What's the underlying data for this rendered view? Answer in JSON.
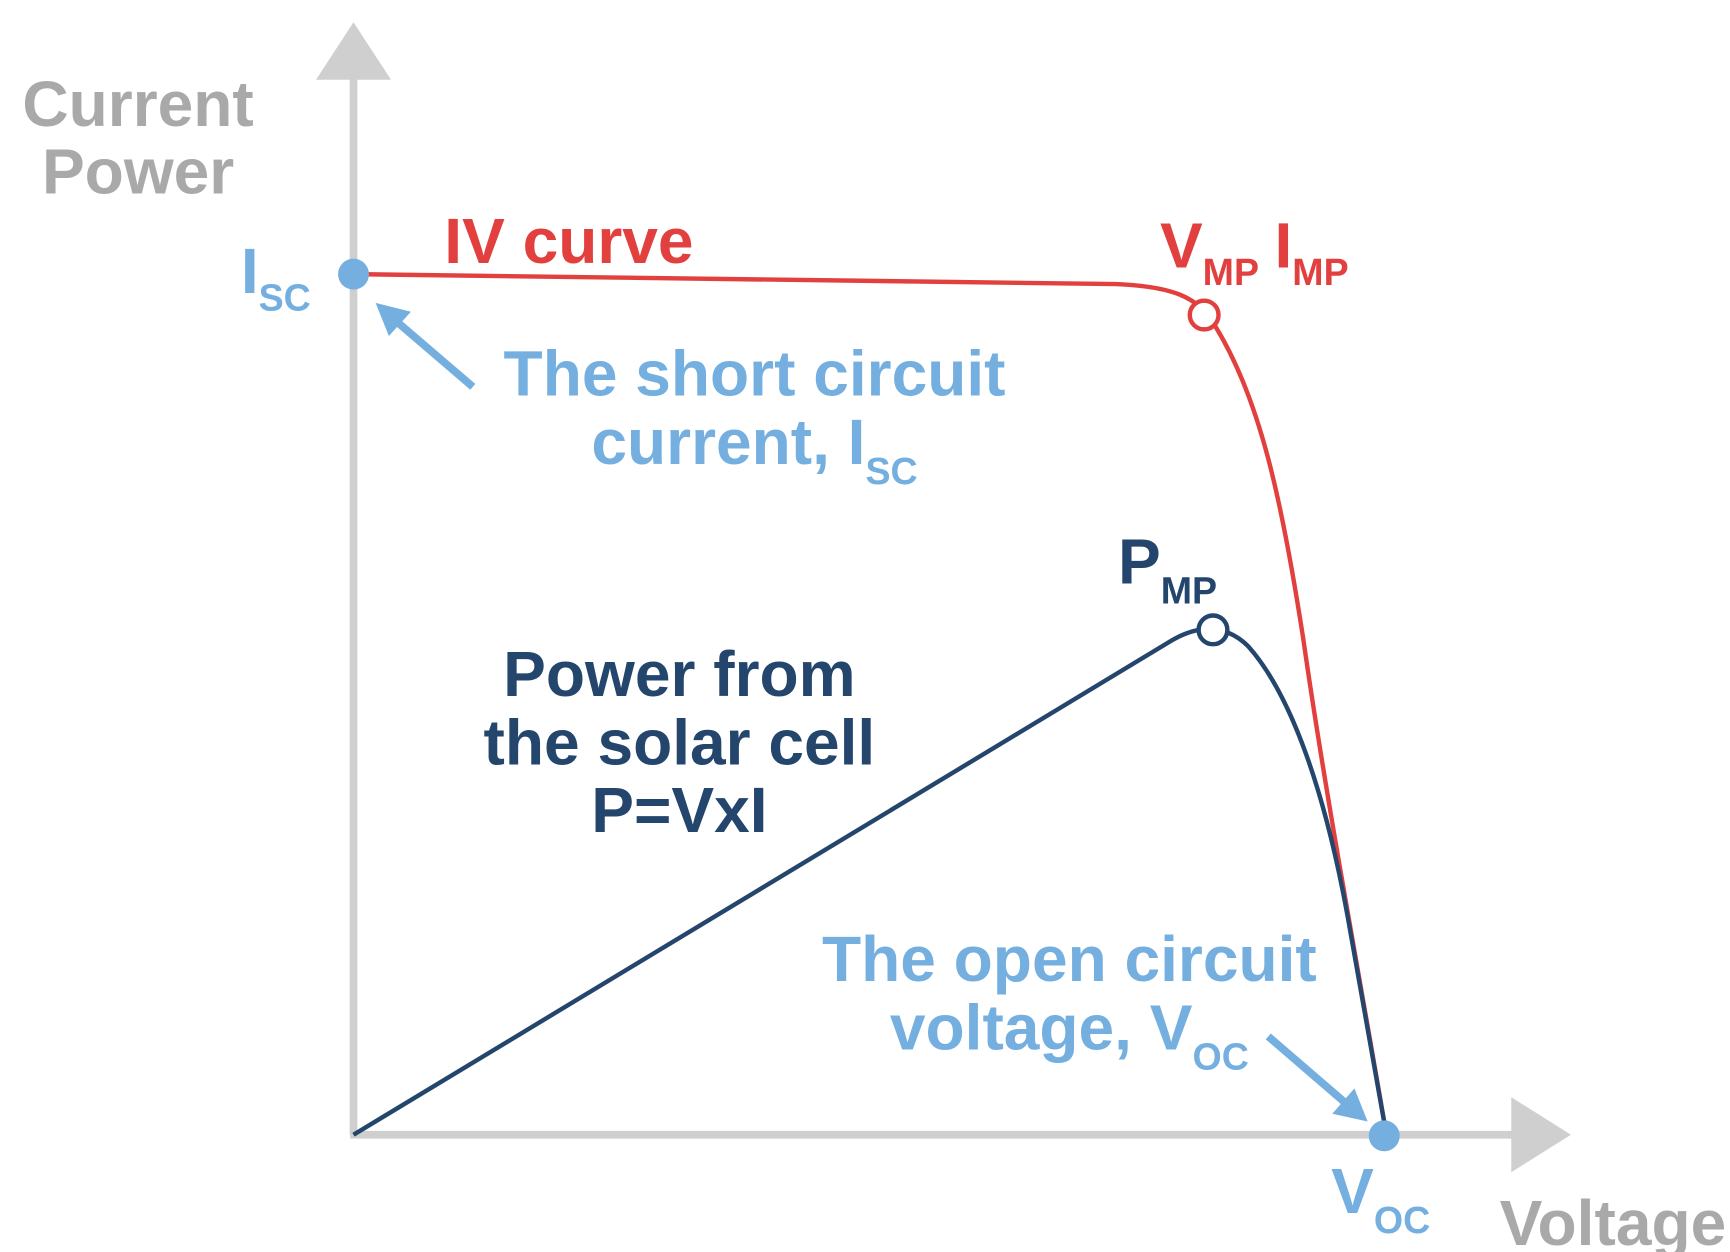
{
  "axis_labels": {
    "y": [
      "Current",
      "Power"
    ],
    "x": "Voltage"
  },
  "isc": {
    "symbol": "I",
    "subscript": "SC"
  },
  "iv_curve_label": "IV curve",
  "mpp_label": {
    "v": "V",
    "v_sub": "MP",
    "i": "I",
    "i_sub": "MP"
  },
  "isc_note": {
    "line1": "The short circuit",
    "line2": "current, I",
    "line2_sub": "SC"
  },
  "pmp": {
    "symbol": "P",
    "subscript": "MP"
  },
  "power_note": [
    "Power from",
    "the solar cell",
    "P=VxI"
  ],
  "voc_note": {
    "line1": "The open circuit",
    "line2": "voltage, V",
    "line2_sub": "OC"
  },
  "voc": {
    "symbol": "V",
    "subscript": "OC"
  }
}
